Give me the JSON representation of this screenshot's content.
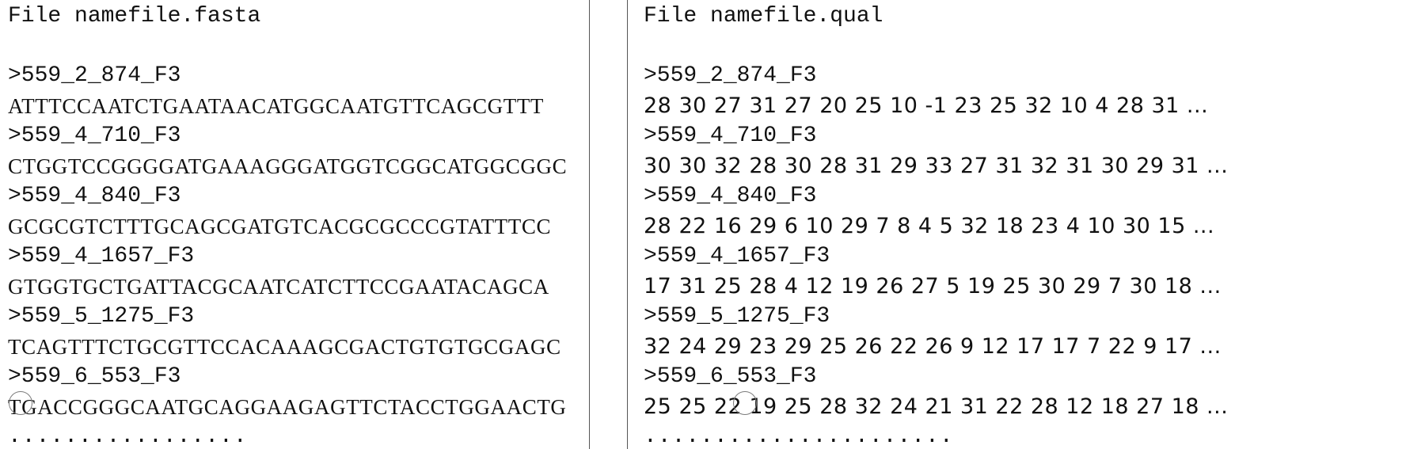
{
  "fasta": {
    "title": "File namefile.fasta",
    "records": [
      {
        "header": ">559_2_874_F3",
        "sequence": "ATTTCCAATCTGAATAACATGGCAATGTTCAGCGTTT"
      },
      {
        "header": ">559_4_710_F3",
        "sequence": "CTGGTCCGGGGATGAAAGGGATGGTCGGCATGGCGGC"
      },
      {
        "header": ">559_4_840_F3",
        "sequence": "GCGCGTCTTTGCAGCGATGTCACGCGCCCGTATTTCC"
      },
      {
        "header": ">559_4_1657_F3",
        "sequence": "GTGGTGCTGATTACGCAATCATCTTCCGAATACAGCA"
      },
      {
        "header": ">559_5_1275_F3",
        "sequence": "TCAGTTTCTGCGTTCCACAAAGCGACTGTGTGCGAGC"
      },
      {
        "header": ">559_6_553_F3",
        "sequence": "TGACCGGGCAATGCAGGAAGAGTTCTACCTGGAACTG"
      }
    ],
    "continuation": "................."
  },
  "qual": {
    "title": "File namefile.qual",
    "records": [
      {
        "header": ">559_2_874_F3",
        "scores": "28 30 27 31 27 20 25 10 -1 23 25 32 10 4 28 31 ..."
      },
      {
        "header": ">559_4_710_F3",
        "scores": "30 30 32 28 30 28 31 29 33 27 31 32 31 30 29 31 ..."
      },
      {
        "header": ">559_4_840_F3",
        "scores": "28 22 16 29 6 10 29 7 8 4 5 32 18 23 4 10 30 15 ..."
      },
      {
        "header": ">559_4_1657_F3",
        "scores": "17 31 25 28 4 12 19 26 27 5 19 25 30 29 7 30 18 ..."
      },
      {
        "header": ">559_5_1275_F3",
        "scores": "32 24 29 23 29 25 26 22 26 9 12 17 17 7 22 9 17 ..."
      },
      {
        "header": ">559_6_553_F3",
        "scores": "25 25 22 19 25 28 32 24 21 31 22 28 12 18 27 18 ..."
      }
    ],
    "continuation": "......................"
  }
}
